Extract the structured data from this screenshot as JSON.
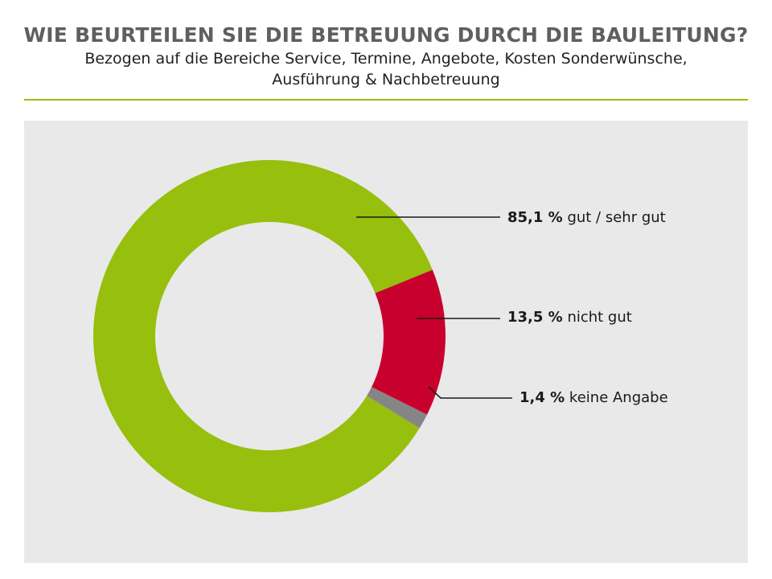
{
  "header": {
    "title": "WIE BEURTEILEN SIE DIE BETREUUNG DURCH DIE BAULEITUNG?",
    "subtitle_line1": "Bezogen auf die Bereiche Service, Termine, Angebote, Kosten Sonderwünsche,",
    "subtitle_line2": "Ausführung & Nachbetreuung"
  },
  "colors": {
    "accent_rule": "#97bf0d",
    "panel_bg": "#e9e9e9"
  },
  "chart_data": {
    "type": "pie",
    "variant": "donut",
    "title": "WIE BEURTEILEN SIE DIE BETREUUNG DURCH DIE BAULEITUNG?",
    "slices": [
      {
        "value": 85.1,
        "value_label": "85,1 %",
        "label": "gut / sehr gut",
        "color": "#97bf0d"
      },
      {
        "value": 13.5,
        "value_label": "13,5 %",
        "label": "nicht gut",
        "color": "#c8002d"
      },
      {
        "value": 1.4,
        "value_label": "1,4 %",
        "label": "keine Angabe",
        "color": "#858585"
      }
    ],
    "legend": "none",
    "labels": "leader-lines-right"
  }
}
